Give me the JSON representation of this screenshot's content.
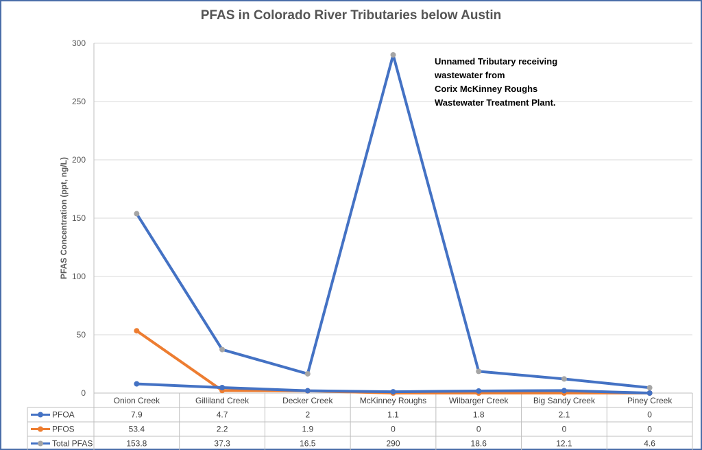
{
  "chart_data": {
    "type": "line",
    "title": "PFAS in Colorado River Tributaries below Austin",
    "ylabel": "PFAS Concentration (ppt, ng/L)",
    "xlabel": "",
    "ylim": [
      0,
      300
    ],
    "yticks": [
      0,
      50,
      100,
      150,
      200,
      250,
      300
    ],
    "grid": true,
    "legend": "data-table-left",
    "categories": [
      "Onion Creek",
      "Gilliland Creek",
      "Decker Creek",
      "McKinney Roughs",
      "Wilbarger Creek",
      "Big Sandy Creek",
      "Piney Creek"
    ],
    "series": [
      {
        "name": "PFOA",
        "color": "#4472c4",
        "values": [
          7.9,
          4.7,
          2,
          1.1,
          1.8,
          2.1,
          0
        ],
        "labels": [
          "7.9",
          "4.7",
          "2",
          "1.1",
          "1.8",
          "2.1",
          "0"
        ]
      },
      {
        "name": "PFOS",
        "color": "#ed7d31",
        "values": [
          53.4,
          2.2,
          1.9,
          0,
          0,
          0,
          0
        ],
        "labels": [
          "53.4",
          "2.2",
          "1.9",
          "0",
          "0",
          "0",
          "0"
        ]
      },
      {
        "name": "Total PFAS",
        "color": "#4472c4",
        "marker_color": "#a5a5a5",
        "values": [
          153.8,
          37.3,
          16.5,
          290,
          18.6,
          12.1,
          4.6
        ],
        "labels": [
          "153.8",
          "37.3",
          "16.5",
          "290",
          "18.6",
          "12.1",
          "4.6"
        ]
      }
    ],
    "annotation": [
      "Unnamed Tributary receiving",
      "wastewater from",
      "Corix McKinney Roughs",
      "Wastewater Treatment Plant."
    ]
  }
}
